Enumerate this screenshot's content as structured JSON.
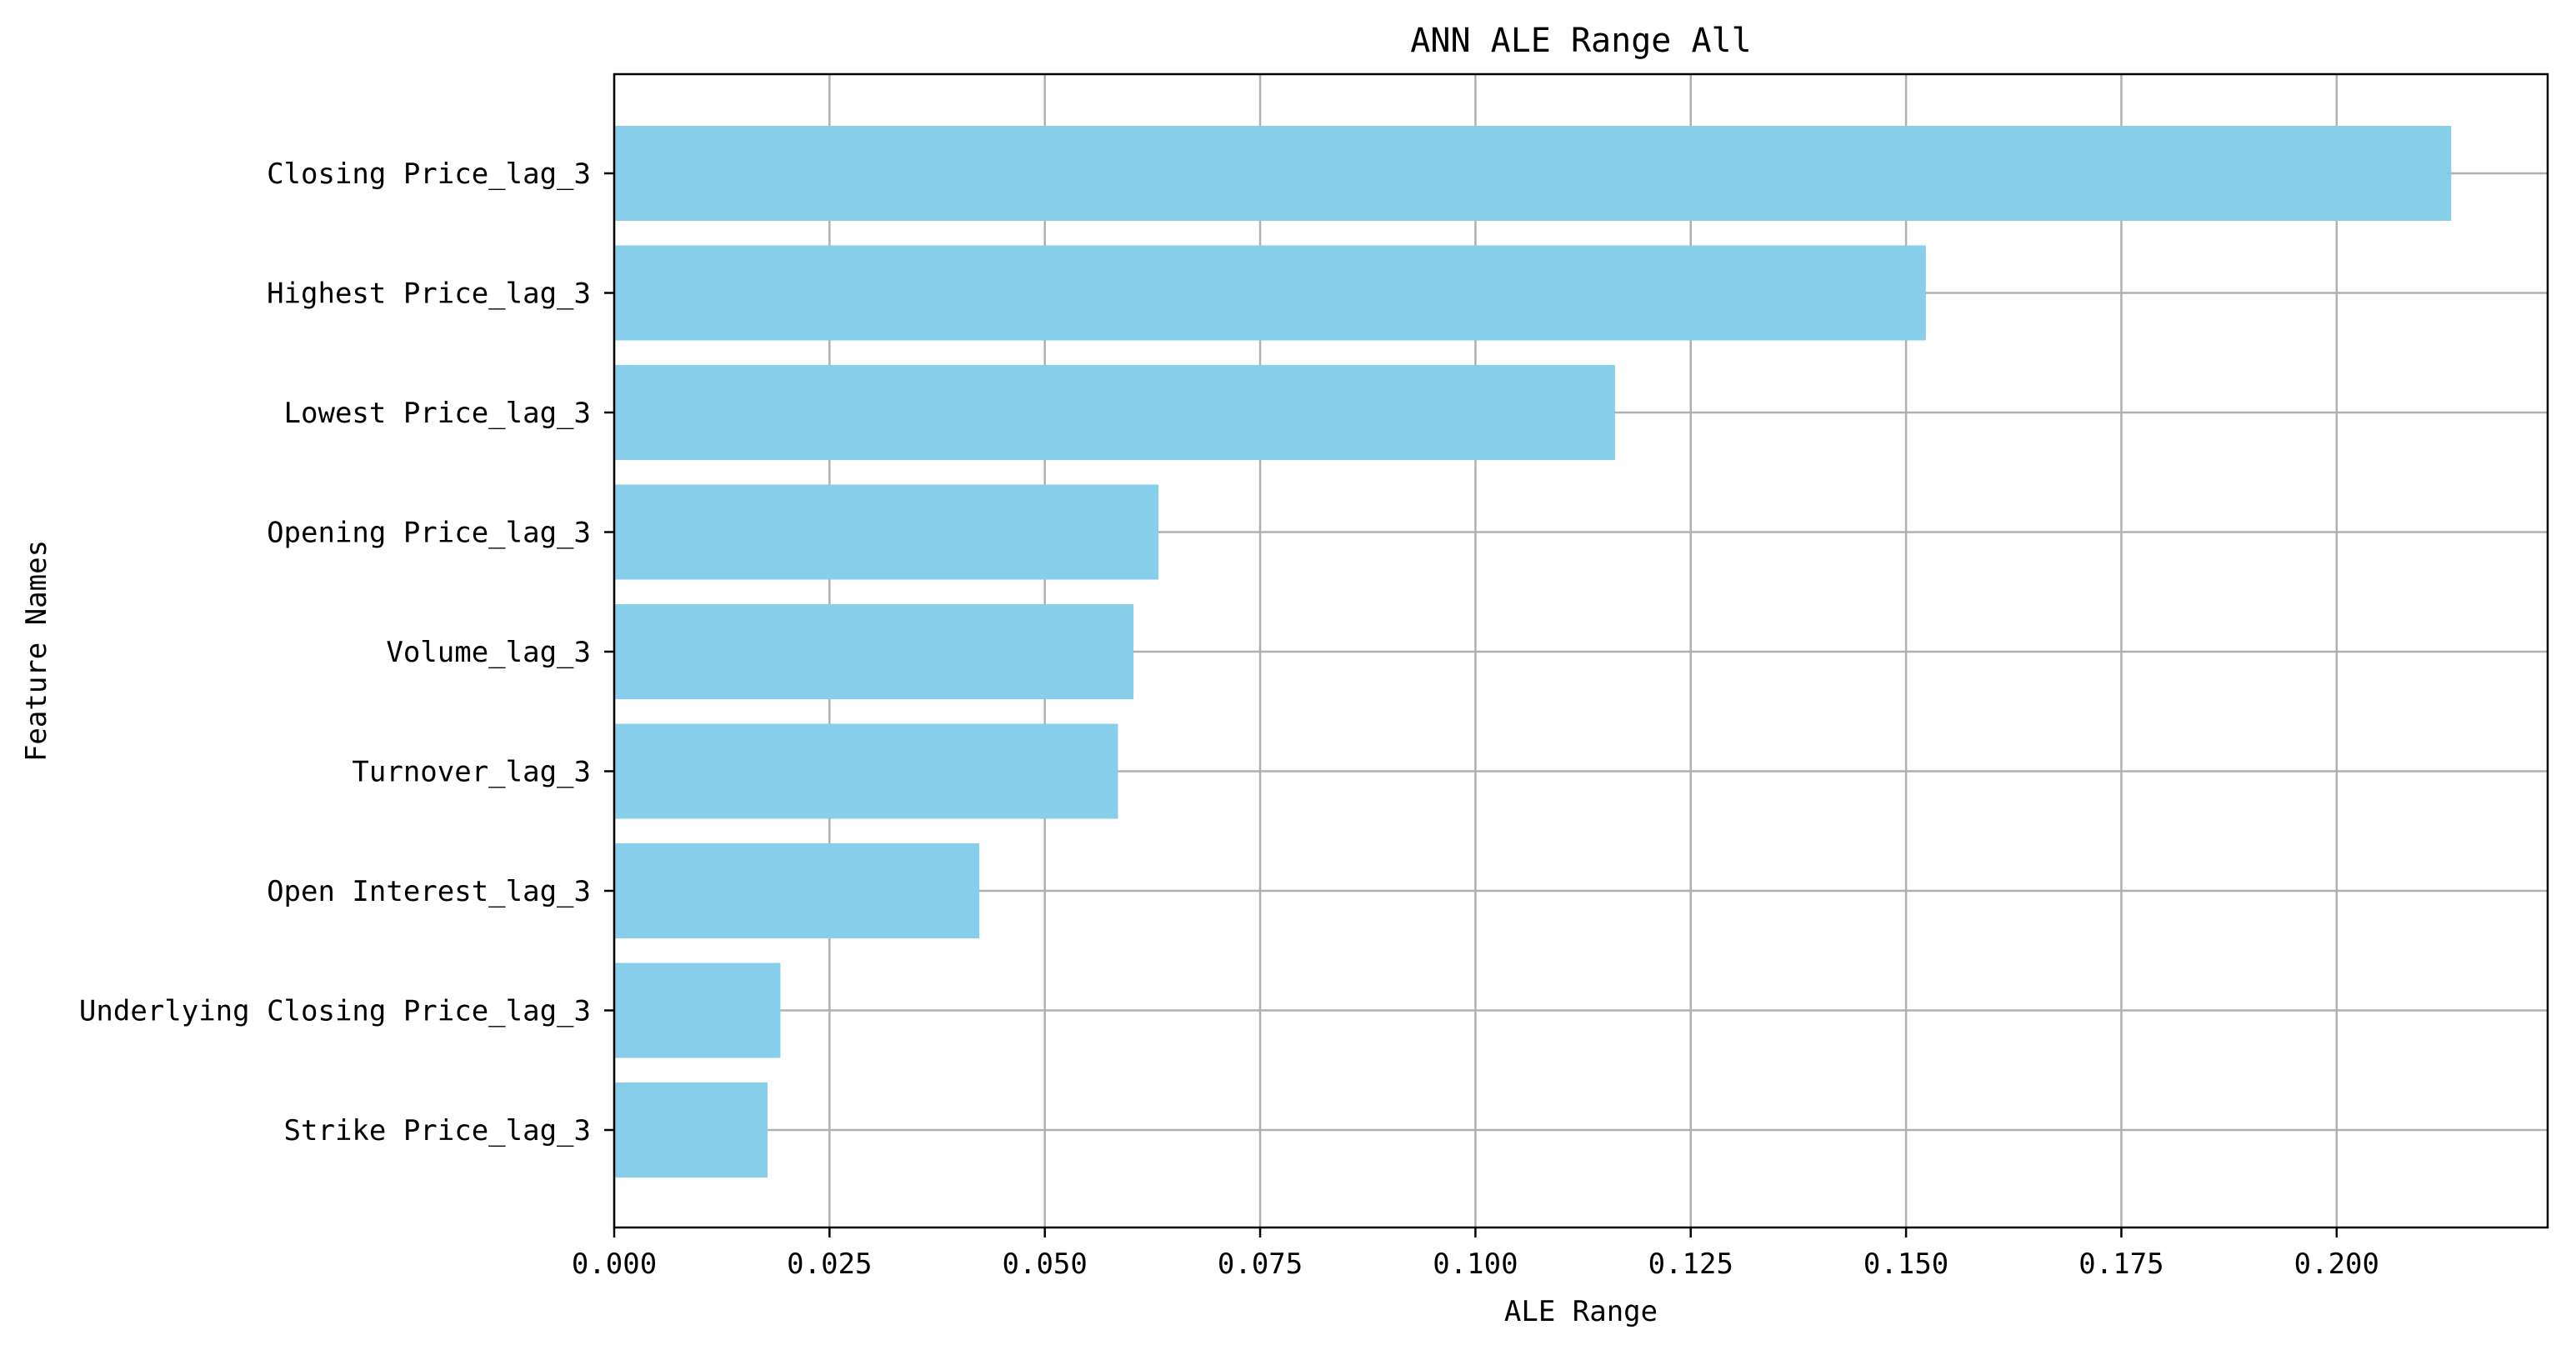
{
  "chart_data": {
    "type": "bar",
    "orientation": "horizontal",
    "title": "ANN ALE Range All",
    "xlabel": "ALE Range",
    "ylabel": "Feature Names",
    "categories": [
      "Closing Price_lag_3",
      "Highest Price_lag_3",
      "Lowest Price_lag_3",
      "Opening Price_lag_3",
      "Volume_lag_3",
      "Turnover_lag_3",
      "Open Interest_lag_3",
      "Underlying Closing Price_lag_3",
      "Strike Price_lag_3"
    ],
    "values": [
      0.2133,
      0.1523,
      0.1162,
      0.0632,
      0.0603,
      0.0585,
      0.0424,
      0.0193,
      0.0178
    ],
    "xlim": [
      0,
      0.2245
    ],
    "x_ticks": [
      0.0,
      0.025,
      0.05,
      0.075,
      0.1,
      0.125,
      0.15,
      0.175,
      0.2
    ],
    "x_tick_labels": [
      "0.000",
      "0.025",
      "0.050",
      "0.075",
      "0.100",
      "0.125",
      "0.150",
      "0.175",
      "0.200"
    ],
    "grid": true,
    "bar_color": "#87CEEB",
    "grid_color": "#b0b0b0"
  }
}
